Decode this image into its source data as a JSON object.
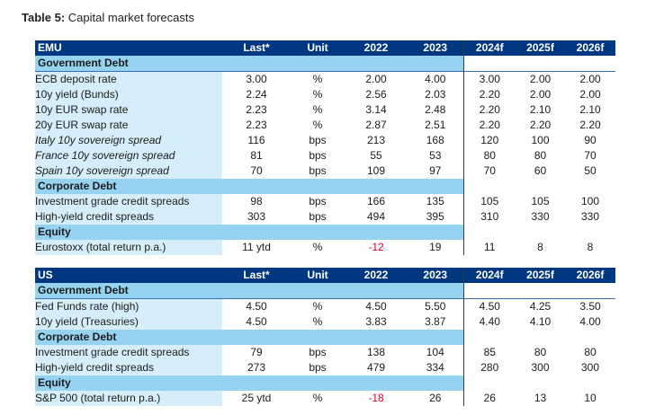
{
  "title": {
    "prefix": "Table 5:",
    "text": "Capital market forecasts"
  },
  "tables": [
    {
      "headers": [
        "EMU",
        "Last*",
        "Unit",
        "2022",
        "2023",
        "2024f",
        "2025f",
        "2026f"
      ],
      "sections": [
        {
          "name": "Government Debt",
          "rows": [
            {
              "label": "ECB deposit rate",
              "italic": false,
              "values": [
                "3.00",
                "%",
                "2.00",
                "4.00",
                "3.00",
                "2.00",
                "2.00"
              ]
            },
            {
              "label": "10y yield (Bunds)",
              "italic": false,
              "values": [
                "2.24",
                "%",
                "2.56",
                "2.03",
                "2.20",
                "2.00",
                "2.00"
              ]
            },
            {
              "label": "10y EUR swap rate",
              "italic": false,
              "values": [
                "2.23",
                "%",
                "3.14",
                "2.48",
                "2.20",
                "2.10",
                "2.10"
              ]
            },
            {
              "label": "20y EUR swap rate",
              "italic": false,
              "values": [
                "2.23",
                "%",
                "2.87",
                "2.51",
                "2.20",
                "2.20",
                "2.20"
              ]
            },
            {
              "label": "Italy 10y sovereign spread",
              "italic": true,
              "values": [
                "116",
                "bps",
                "213",
                "168",
                "120",
                "100",
                "90"
              ]
            },
            {
              "label": "France 10y sovereign spread",
              "italic": true,
              "values": [
                "81",
                "bps",
                "55",
                "53",
                "80",
                "80",
                "70"
              ]
            },
            {
              "label": "Spain 10y sovereign spread",
              "italic": true,
              "values": [
                "70",
                "bps",
                "109",
                "97",
                "70",
                "60",
                "50"
              ]
            }
          ]
        },
        {
          "name": "Corporate Debt",
          "rows": [
            {
              "label": "Investment grade credit spreads",
              "italic": false,
              "values": [
                "98",
                "bps",
                "166",
                "135",
                "105",
                "105",
                "100"
              ]
            },
            {
              "label": "High-yield credit spreads",
              "italic": false,
              "values": [
                "303",
                "bps",
                "494",
                "395",
                "310",
                "330",
                "330"
              ]
            }
          ]
        },
        {
          "name": "Equity",
          "rows": [
            {
              "label": "Eurostoxx (total return p.a.)",
              "italic": false,
              "values": [
                "11 ytd",
                "%",
                "-12",
                "19",
                "11",
                "8",
                "8"
              ],
              "negative": [
                2
              ]
            }
          ]
        }
      ]
    },
    {
      "headers": [
        "US",
        "Last*",
        "Unit",
        "2022",
        "2023",
        "2024f",
        "2025f",
        "2026f"
      ],
      "sections": [
        {
          "name": "Government Debt",
          "rows": [
            {
              "label": "Fed Funds rate (high)",
              "italic": false,
              "values": [
                "4.50",
                "%",
                "4.50",
                "5.50",
                "4.50",
                "4.25",
                "3.50"
              ]
            },
            {
              "label": "10y yield (Treasuries)",
              "italic": false,
              "values": [
                "4.50",
                "%",
                "3.83",
                "3.87",
                "4.40",
                "4.10",
                "4.00"
              ]
            }
          ]
        },
        {
          "name": "Corporate Debt",
          "rows": [
            {
              "label": "Investment grade credit spreads",
              "italic": false,
              "values": [
                "79",
                "bps",
                "138",
                "104",
                "85",
                "80",
                "80"
              ]
            },
            {
              "label": "High-yield credit spreads",
              "italic": false,
              "values": [
                "273",
                "bps",
                "479",
                "334",
                "280",
                "300",
                "300"
              ]
            }
          ]
        },
        {
          "name": "Equity",
          "rows": [
            {
              "label": "S&P 500 (total return p.a.)",
              "italic": false,
              "values": [
                "25 ytd",
                "%",
                "-18",
                "26",
                "26",
                "13",
                "10"
              ],
              "negative": [
                2
              ]
            }
          ]
        }
      ]
    }
  ]
}
